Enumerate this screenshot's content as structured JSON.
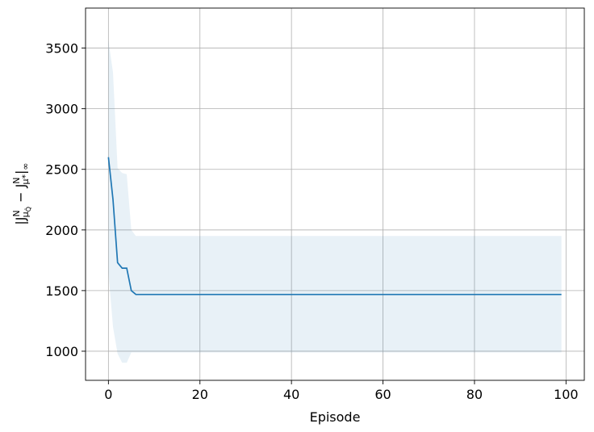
{
  "chart_data": {
    "type": "line",
    "xlabel": "Episode",
    "ylabel": "|J^N_{μ_Q̂} − J^N_{μ*}|_∞",
    "xlim": [
      -5,
      104
    ],
    "ylim": [
      760,
      3830
    ],
    "xticks": [
      0,
      20,
      40,
      60,
      80,
      100
    ],
    "yticks": [
      1000,
      1500,
      2000,
      2500,
      3000,
      3500
    ],
    "grid": true,
    "legend": "none",
    "series": [
      {
        "color": "#1f77b4",
        "x": [
          0,
          1,
          2,
          3,
          4,
          5,
          6,
          10,
          20,
          30,
          40,
          50,
          60,
          70,
          80,
          90,
          99
        ],
        "values": [
          2600,
          2250,
          1730,
          1685,
          1685,
          1500,
          1468,
          1468,
          1468,
          1468,
          1468,
          1468,
          1468,
          1468,
          1468,
          1468,
          1468
        ],
        "band_color": "#1f77b4",
        "band_opacity": 0.1,
        "band_upper": [
          3560,
          3300,
          2510,
          2470,
          2460,
          2000,
          1950,
          1950,
          1950,
          1950,
          1950,
          1950,
          1950,
          1950,
          1950,
          1950,
          1950
        ],
        "band_lower": [
          1650,
          1200,
          980,
          905,
          905,
          990,
          990,
          990,
          990,
          990,
          990,
          990,
          990,
          990,
          990,
          990,
          990
        ]
      }
    ]
  }
}
